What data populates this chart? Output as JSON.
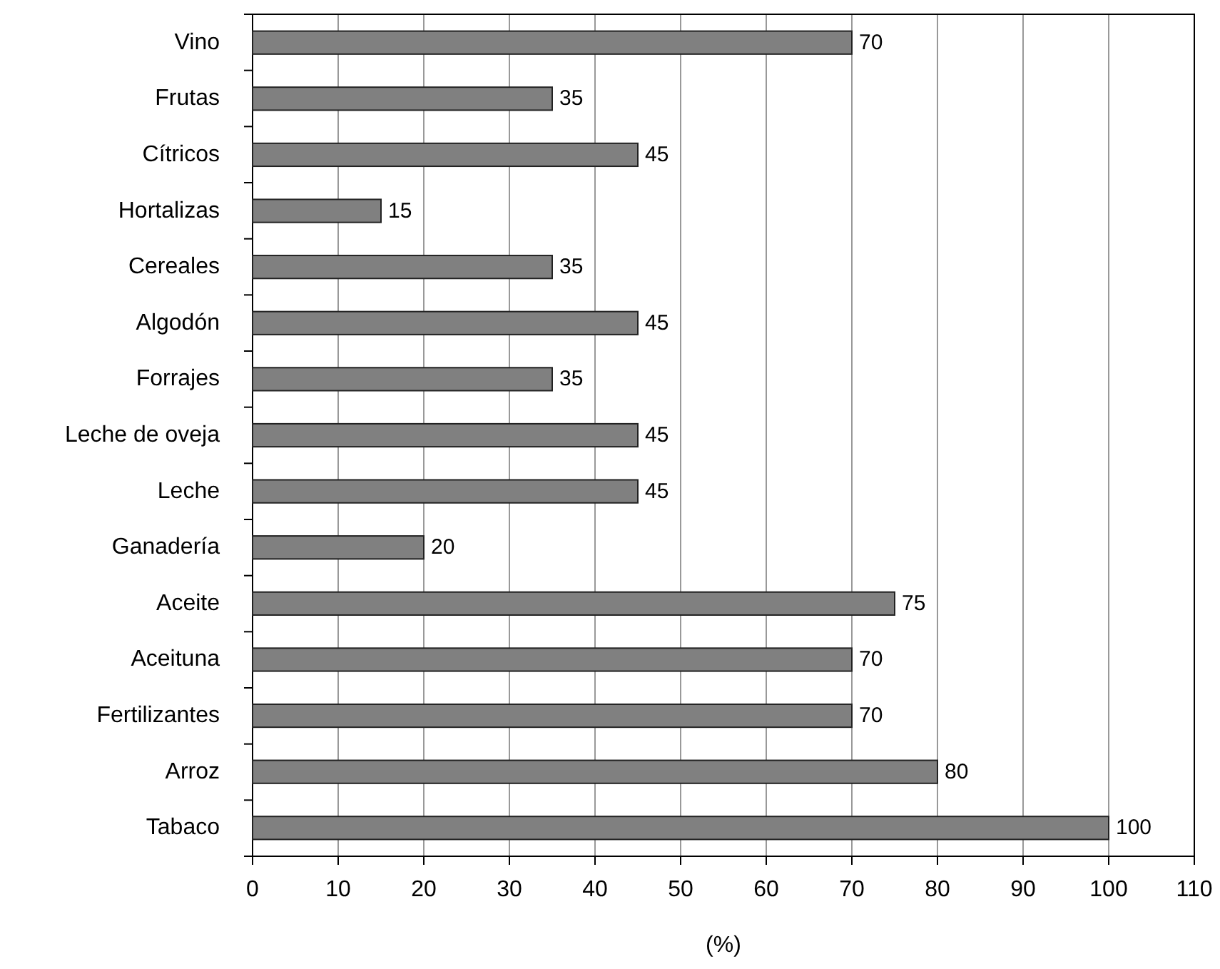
{
  "chart_data": {
    "type": "bar",
    "orientation": "horizontal",
    "xlabel": "(%)",
    "categories": [
      "Vino",
      "Frutas",
      "Cítricos",
      "Hortalizas",
      "Cereales",
      "Algodón",
      "Forrajes",
      "Leche de oveja",
      "Leche",
      "Ganadería",
      "Aceite",
      "Aceituna",
      "Fertilizantes",
      "Arroz",
      "Tabaco"
    ],
    "values": [
      70,
      35,
      45,
      15,
      35,
      45,
      35,
      45,
      45,
      20,
      75,
      70,
      70,
      80,
      100
    ],
    "color": "#808080",
    "xlim": [
      0,
      110
    ],
    "xticks": [
      0,
      10,
      20,
      30,
      40,
      50,
      60,
      70,
      80,
      90,
      100,
      110
    ],
    "grid": "x",
    "data_labels": true
  }
}
